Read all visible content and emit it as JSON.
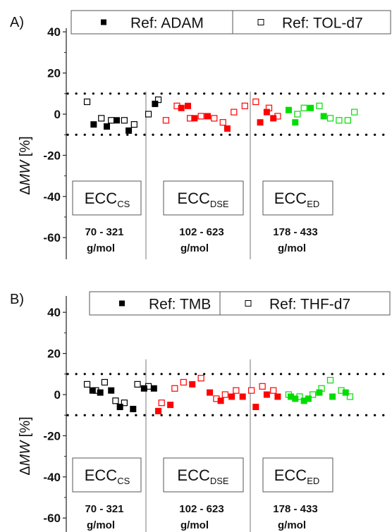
{
  "chart_data": [
    {
      "panel_label": "A)",
      "type": "scatter",
      "ylabel": "ΔMW [%]",
      "ylabel_parts": {
        "delta": "Δ",
        "italic": "MW",
        "unit": " [%]"
      },
      "yticks": [
        "40",
        "20",
        "0",
        "-20",
        "-40",
        "-60"
      ],
      "ylim": [
        -68,
        42
      ],
      "threshold_lines": [
        10,
        -10
      ],
      "grid": false,
      "legend": [
        {
          "marker": "filled-square",
          "label": "Ref: ADAM"
        },
        {
          "marker": "open-square",
          "label": "Ref: TOL-d7"
        }
      ],
      "groups": [
        {
          "name": "ECC",
          "subscript": "CS",
          "range": "70 - 321",
          "unit": "g/mol",
          "color": "#000000"
        },
        {
          "name": "ECC",
          "subscript": "DSE",
          "range": "102 - 623",
          "unit": "g/mol",
          "color": "#ff0000"
        },
        {
          "name": "ECC",
          "subscript": "ED",
          "range": "178 - 433",
          "unit": "g/mol",
          "color": "#00dd00"
        }
      ],
      "series": [
        {
          "group": 0,
          "style": "open",
          "x": [
            1,
            2.3,
            3.2,
            4.4,
            5.3,
            6.6,
            7.5
          ],
          "y": [
            6,
            -2,
            -3,
            -3,
            -5,
            0,
            7
          ]
        },
        {
          "group": 0,
          "style": "filled",
          "x": [
            1.6,
            2.8,
            3.7,
            4.8,
            7.2
          ],
          "y": [
            -5,
            -6,
            -3,
            -8,
            5
          ]
        },
        {
          "group": 1,
          "style": "open",
          "x": [
            8.2,
            9.2,
            10.4,
            11.4,
            12.6,
            13.4,
            14.4,
            15.4,
            16.4,
            17.6,
            18.4
          ],
          "y": [
            -3,
            4,
            -2,
            -1,
            -2,
            -4,
            1,
            4,
            6,
            3,
            -1
          ]
        },
        {
          "group": 1,
          "style": "filled",
          "x": [
            9.6,
            10.2,
            10.8,
            12.0,
            13.8,
            16.8,
            17.4,
            18.0
          ],
          "y": [
            3,
            4,
            -2,
            -1,
            -7,
            -4,
            1,
            -2
          ]
        },
        {
          "group": 2,
          "style": "open",
          "x": [
            20.2,
            20.8,
            22.2,
            23.2,
            24.0,
            24.8,
            25.4
          ],
          "y": [
            0,
            3,
            4,
            -2,
            -3,
            -3,
            1
          ]
        },
        {
          "group": 2,
          "style": "filled",
          "x": [
            19.4,
            20.0,
            21.4,
            22.6
          ],
          "y": [
            2,
            -4,
            3,
            -1
          ]
        }
      ]
    },
    {
      "panel_label": "B)",
      "type": "scatter",
      "ylabel": "ΔMW [%]",
      "ylabel_parts": {
        "delta": "Δ",
        "italic": "MW",
        "unit": " [%]"
      },
      "yticks": [
        "40",
        "20",
        "0",
        "-20",
        "-40",
        "-60"
      ],
      "ylim": [
        -68,
        42
      ],
      "threshold_lines": [
        10,
        -10
      ],
      "grid": false,
      "legend": [
        {
          "marker": "filled-square",
          "label": "Ref: TMB"
        },
        {
          "marker": "open-square",
          "label": "Ref: THF-d7"
        }
      ],
      "groups": [
        {
          "name": "ECC",
          "subscript": "CS",
          "range": "70 - 321",
          "unit": "g/mol",
          "color": "#000000"
        },
        {
          "name": "ECC",
          "subscript": "DSE",
          "range": "102 - 623",
          "unit": "g/mol",
          "color": "#ff0000"
        },
        {
          "name": "ECC",
          "subscript": "ED",
          "range": "178 - 433",
          "unit": "g/mol",
          "color": "#00dd00"
        }
      ],
      "series": [
        {
          "group": 0,
          "style": "open",
          "x": [
            1,
            1.8,
            2.6,
            3.6,
            4.4,
            5.6,
            6.6
          ],
          "y": [
            5,
            2,
            6,
            -3,
            -4,
            5,
            4
          ]
        },
        {
          "group": 0,
          "style": "filled",
          "x": [
            1.5,
            2.2,
            3.2,
            4.0,
            5.2,
            6.2,
            7.1
          ],
          "y": [
            2,
            1,
            2,
            -6,
            -7,
            3,
            3
          ]
        },
        {
          "group": 1,
          "style": "open",
          "x": [
            7.8,
            9.0,
            9.8,
            11.4,
            12.8,
            13.6,
            14.6,
            16.0,
            17.0,
            18.0
          ],
          "y": [
            -4,
            3,
            6,
            8,
            -2,
            0,
            2,
            2,
            4,
            2
          ]
        },
        {
          "group": 1,
          "style": "filled",
          "x": [
            7.5,
            8.6,
            10.6,
            12.2,
            13.2,
            14.2,
            15.2,
            16.4,
            17.4,
            18.4
          ],
          "y": [
            -8,
            -5,
            5,
            1,
            -3,
            -1,
            -1,
            -6,
            0,
            -1
          ]
        },
        {
          "group": 2,
          "style": "open",
          "x": [
            19.4,
            20.4,
            21.6,
            22.4,
            23.2,
            24.2,
            25.0
          ],
          "y": [
            0,
            -1,
            0,
            3,
            7,
            2,
            -1
          ]
        },
        {
          "group": 2,
          "style": "filled",
          "x": [
            19.6,
            20.0,
            20.8,
            21.2,
            22.2,
            23.4,
            24.6
          ],
          "y": [
            -1,
            -2,
            -3,
            -2,
            1,
            -1,
            1
          ]
        }
      ]
    }
  ]
}
